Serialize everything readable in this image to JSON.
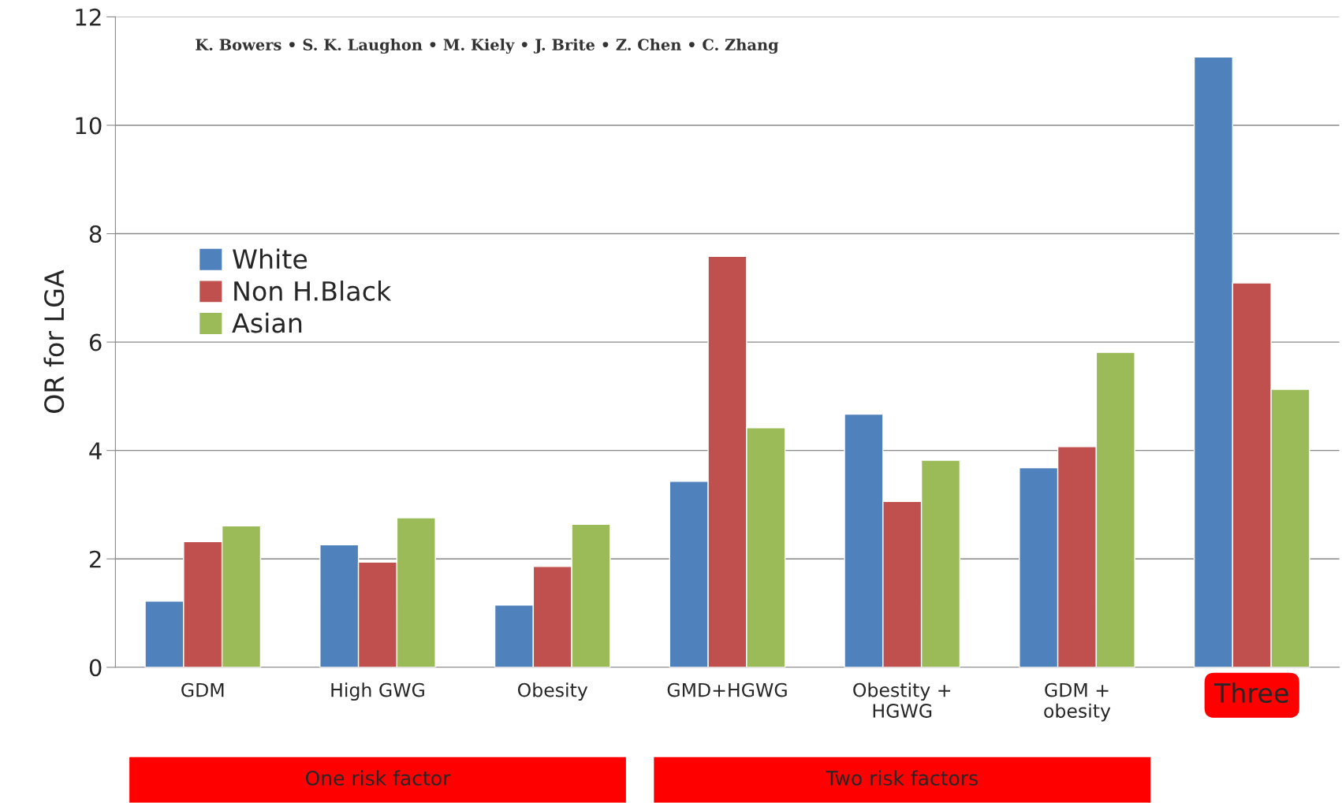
{
  "chart_data": {
    "type": "bar",
    "ylabel": "OR for LGA",
    "categories": [
      "GDM",
      "High GWG",
      "Obesity",
      "GMD+HGWG",
      "Obestity +\nHGWG",
      "GDM +\nobesity",
      "Three"
    ],
    "series": [
      {
        "name": "White",
        "color": "#4f81bd",
        "values": [
          1.22,
          2.26,
          1.15,
          3.43,
          4.67,
          3.68,
          11.26
        ]
      },
      {
        "name": "Non H.Black",
        "color": "#c0504d",
        "values": [
          2.32,
          1.94,
          1.86,
          7.58,
          3.06,
          4.07,
          7.09
        ]
      },
      {
        "name": "Asian",
        "color": "#9bbb59",
        "values": [
          2.61,
          2.76,
          2.64,
          4.42,
          3.82,
          5.81,
          5.13
        ]
      }
    ],
    "ylim": [
      0,
      12
    ],
    "yticks": [
      0,
      2,
      4,
      6,
      8,
      10,
      12
    ],
    "grid": "y",
    "legend": "top left",
    "annotations": [
      "K. Bowers • S. K. Laughon • M. Kiely • J. Brite • Z. Chen • C. Zhang",
      "One risk factor",
      "Two risk factors"
    ]
  }
}
